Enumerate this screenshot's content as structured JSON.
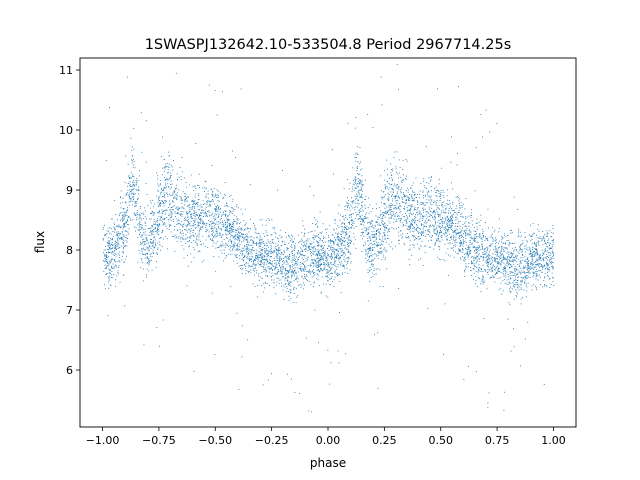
{
  "chart_data": {
    "type": "scatter",
    "title": "1SWASPJ132642.10-533504.8 Period 2967714.25s",
    "xlabel": "phase",
    "ylabel": "flux",
    "xlim": [
      -1.1,
      1.1
    ],
    "ylim": [
      5.05,
      11.2
    ],
    "xticks": [
      -1.0,
      -0.75,
      -0.5,
      -0.25,
      0.0,
      0.25,
      0.5,
      0.75,
      1.0
    ],
    "xtick_labels": [
      "−1.00",
      "−0.75",
      "−0.50",
      "−0.25",
      "0.00",
      "0.25",
      "0.50",
      "0.75",
      "1.00"
    ],
    "yticks": [
      6,
      7,
      8,
      9,
      10,
      11
    ],
    "ytick_labels": [
      "6",
      "7",
      "8",
      "9",
      "10",
      "11"
    ],
    "grid": false,
    "legend": "none",
    "marker_color": "#1f77b4",
    "series": [
      {
        "description_points": "phase-folded light curve profile (phase, mean flux, scatter half-width)",
        "profile": [
          [
            -1.0,
            7.9,
            0.45
          ],
          [
            -0.95,
            8.0,
            0.5
          ],
          [
            -0.9,
            8.4,
            0.6
          ],
          [
            -0.87,
            9.2,
            0.7
          ],
          [
            -0.82,
            8.1,
            0.55
          ],
          [
            -0.77,
            8.3,
            0.6
          ],
          [
            -0.72,
            8.9,
            0.7
          ],
          [
            -0.67,
            8.7,
            0.6
          ],
          [
            -0.6,
            8.5,
            0.5
          ],
          [
            -0.55,
            8.6,
            0.55
          ],
          [
            -0.5,
            8.5,
            0.5
          ],
          [
            -0.45,
            8.4,
            0.5
          ],
          [
            -0.4,
            8.2,
            0.45
          ],
          [
            -0.35,
            8.0,
            0.45
          ],
          [
            -0.3,
            7.9,
            0.45
          ],
          [
            -0.25,
            7.9,
            0.45
          ],
          [
            -0.2,
            7.8,
            0.45
          ],
          [
            -0.15,
            7.7,
            0.5
          ],
          [
            -0.1,
            7.9,
            0.45
          ],
          [
            -0.05,
            7.9,
            0.45
          ],
          [
            0.0,
            7.9,
            0.45
          ],
          [
            0.05,
            8.0,
            0.5
          ],
          [
            0.1,
            8.4,
            0.6
          ],
          [
            0.13,
            9.2,
            0.7
          ],
          [
            0.18,
            8.1,
            0.55
          ],
          [
            0.23,
            8.3,
            0.6
          ],
          [
            0.28,
            8.9,
            0.7
          ],
          [
            0.33,
            8.7,
            0.6
          ],
          [
            0.4,
            8.5,
            0.5
          ],
          [
            0.45,
            8.6,
            0.55
          ],
          [
            0.5,
            8.5,
            0.5
          ],
          [
            0.55,
            8.4,
            0.5
          ],
          [
            0.6,
            8.2,
            0.45
          ],
          [
            0.65,
            8.0,
            0.45
          ],
          [
            0.7,
            7.9,
            0.45
          ],
          [
            0.75,
            7.9,
            0.45
          ],
          [
            0.8,
            7.8,
            0.45
          ],
          [
            0.85,
            7.7,
            0.5
          ],
          [
            0.9,
            7.9,
            0.45
          ],
          [
            0.95,
            7.9,
            0.45
          ],
          [
            1.0,
            7.9,
            0.45
          ]
        ]
      }
    ]
  }
}
